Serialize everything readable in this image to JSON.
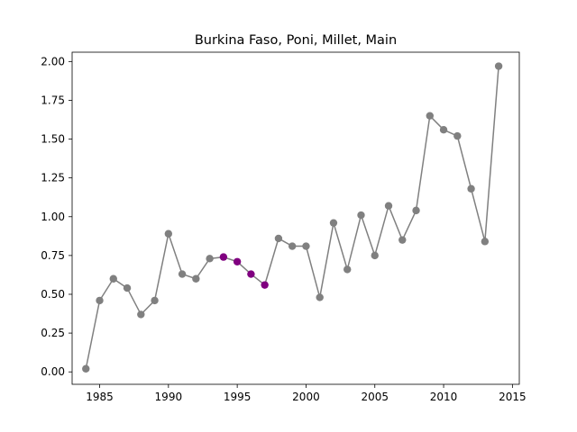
{
  "chart_data": {
    "type": "line",
    "title": "Burkina Faso, Poni, Millet, Main",
    "xlabel": "",
    "ylabel": "",
    "xlim": [
      1983,
      2015.5
    ],
    "ylim": [
      -0.08,
      2.06
    ],
    "xticks": [
      1985,
      1990,
      1995,
      2000,
      2005,
      2010,
      2015
    ],
    "yticks": [
      "0.00",
      "0.25",
      "0.50",
      "0.75",
      "1.00",
      "1.25",
      "1.50",
      "1.75",
      "2.00"
    ],
    "grid": false,
    "line_color": "#808080",
    "highlight_color": "#800080",
    "series": [
      {
        "x": [
          1984,
          1985,
          1986,
          1987,
          1988,
          1989,
          1990,
          1991,
          1992,
          1993,
          1994,
          1995,
          1996,
          1997,
          1998,
          1999,
          2000,
          2001,
          2002,
          2003,
          2004,
          2005,
          2006,
          2007,
          2008,
          2009,
          2010,
          2011,
          2012,
          2013,
          2014
        ],
        "y": [
          0.02,
          0.46,
          0.6,
          0.54,
          0.37,
          0.46,
          0.89,
          0.63,
          0.6,
          0.73,
          0.74,
          0.71,
          0.63,
          0.56,
          0.86,
          0.81,
          0.81,
          0.48,
          0.96,
          0.66,
          1.01,
          0.75,
          1.07,
          0.85,
          1.04,
          1.65,
          1.56,
          1.52,
          1.18,
          0.84,
          1.97
        ],
        "highlight_x": [
          1994,
          1995,
          1996,
          1997
        ]
      }
    ]
  }
}
